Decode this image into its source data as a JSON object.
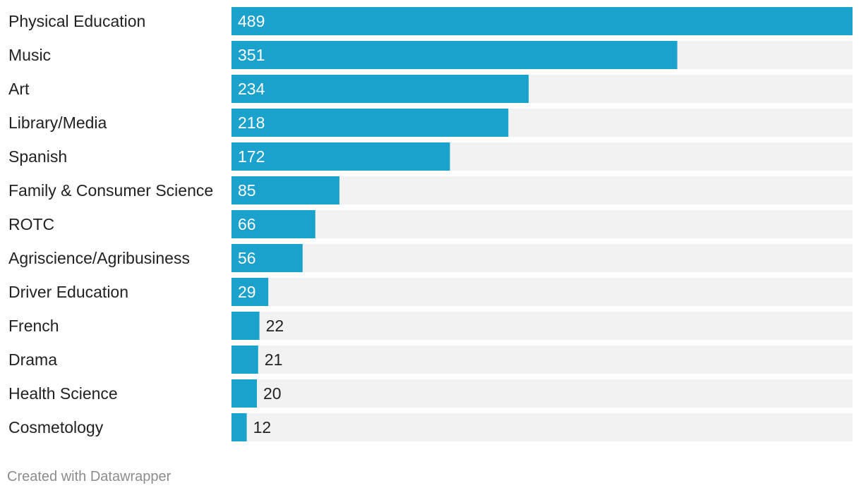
{
  "chart_data": {
    "type": "bar",
    "orientation": "horizontal",
    "categories": [
      "Physical Education",
      "Music",
      "Art",
      "Library/Media",
      "Spanish",
      "Family & Consumer Science",
      "ROTC",
      "Agriscience/Agribusiness",
      "Driver Education",
      "French",
      "Drama",
      "Health Science",
      "Cosmetology"
    ],
    "values": [
      489,
      351,
      234,
      218,
      172,
      85,
      66,
      56,
      29,
      22,
      21,
      20,
      12
    ],
    "xlim": [
      0,
      489
    ],
    "grid": false,
    "legend": "none",
    "colors": {
      "bar": "#1aa1cc",
      "background_bar": "#f2f2f2",
      "label_inside": "#ffffff",
      "label_outside": "#222222"
    }
  },
  "footer": {
    "credit": "Created with Datawrapper"
  }
}
